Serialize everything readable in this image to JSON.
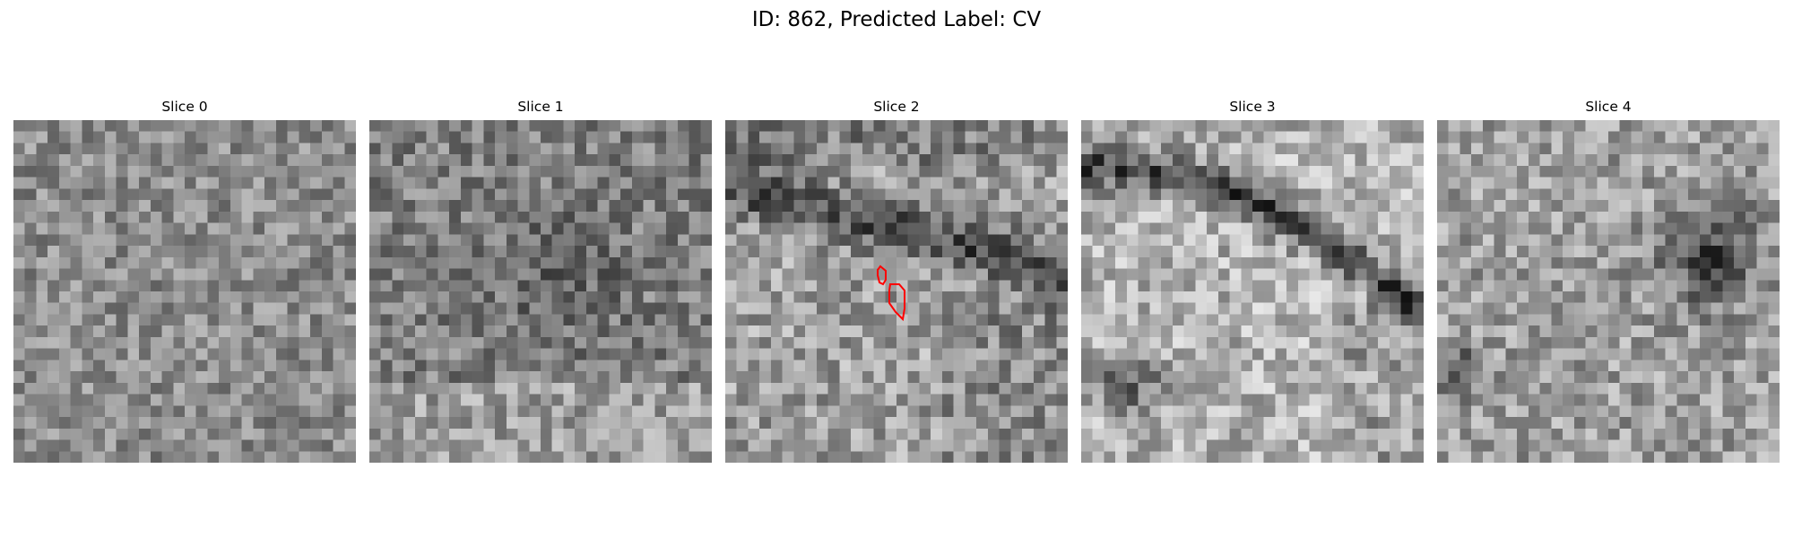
{
  "figure": {
    "title": "ID: 862, Predicted Label: CV"
  },
  "slices": [
    {
      "label": "Slice 0",
      "pattern": "noise",
      "seed": 11,
      "contrast": 0.85
    },
    {
      "label": "Slice 1",
      "pattern": "noise-dark-center",
      "seed": 23,
      "contrast": 0.9
    },
    {
      "label": "Slice 2",
      "pattern": "dark-top-band",
      "seed": 37,
      "contrast": 1.0,
      "has_contour": true
    },
    {
      "label": "Slice 3",
      "pattern": "dark-arc",
      "seed": 49,
      "contrast": 1.0
    },
    {
      "label": "Slice 4",
      "pattern": "dark-right-blob",
      "seed": 61,
      "contrast": 0.95
    }
  ],
  "contour_color": "#ff0000",
  "grid_size": 30
}
